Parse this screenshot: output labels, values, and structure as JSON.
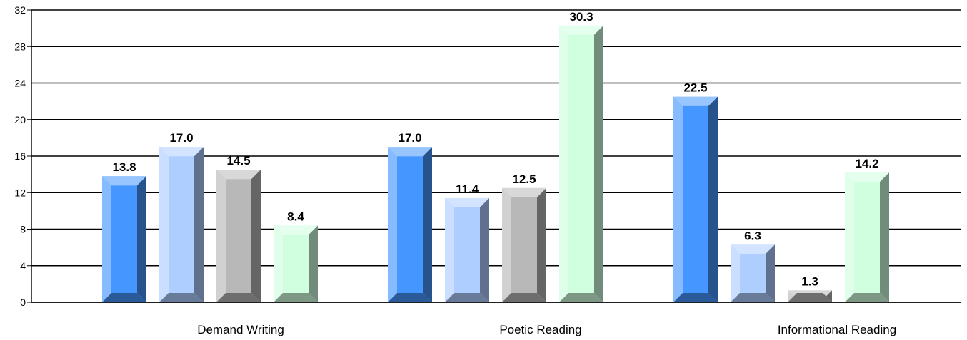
{
  "chart_data": {
    "type": "bar",
    "title": "",
    "xlabel": "",
    "ylabel": "",
    "ylim": [
      0,
      32
    ],
    "yticks": [
      0,
      4,
      8,
      12,
      16,
      20,
      24,
      28,
      32
    ],
    "grid": true,
    "legend": "none",
    "categories": [
      "Demand Writing",
      "Poetic Reading",
      "Informational Reading"
    ],
    "series": [
      {
        "values": [
          13.8,
          17.0,
          22.5
        ],
        "labels": [
          "13.8",
          "17.0",
          "22.5"
        ],
        "color": "#4696FF"
      },
      {
        "values": [
          17.0,
          11.4,
          6.3
        ],
        "labels": [
          "17.0",
          "11.4",
          "6.3"
        ],
        "color": "#ADCEFF"
      },
      {
        "values": [
          14.5,
          12.5,
          1.3
        ],
        "labels": [
          "14.5",
          "12.5",
          "1.3"
        ],
        "color": "#B8B8B8"
      },
      {
        "values": [
          8.4,
          30.3,
          14.2
        ],
        "labels": [
          "8.4",
          "30.3",
          "14.2"
        ],
        "color": "#D0FFE0"
      }
    ]
  }
}
